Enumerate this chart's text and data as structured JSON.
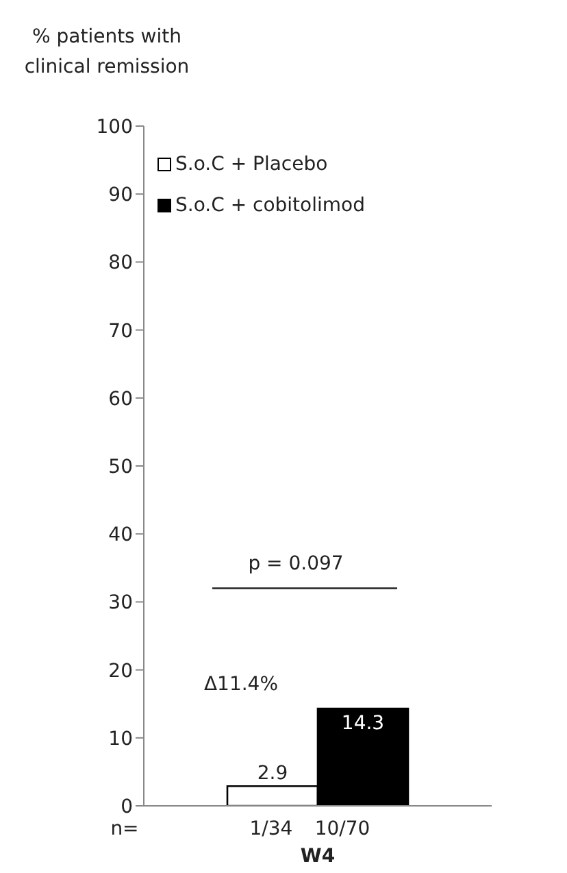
{
  "chart_data": {
    "type": "bar",
    "ylabel": "% patients with clinical remission",
    "categories": [
      "W4"
    ],
    "series": [
      {
        "name": "S.o.C + Placebo",
        "color": "#ffffff",
        "values": [
          2.9
        ]
      },
      {
        "name": "S.o.C + cobitolimod",
        "color": "#000000",
        "values": [
          14.3
        ]
      }
    ],
    "ylim": [
      0,
      100
    ],
    "yticks": [
      0,
      10,
      20,
      30,
      40,
      50,
      60,
      70,
      80,
      90,
      100
    ],
    "grid": false,
    "legend": "top left",
    "data_labels": true,
    "ref_lines": [
      {
        "axis": "y",
        "value": 32
      }
    ],
    "annotations": [
      "p = 0.097",
      "Δ11.4%",
      "n=",
      "1/34",
      "10/70"
    ]
  }
}
